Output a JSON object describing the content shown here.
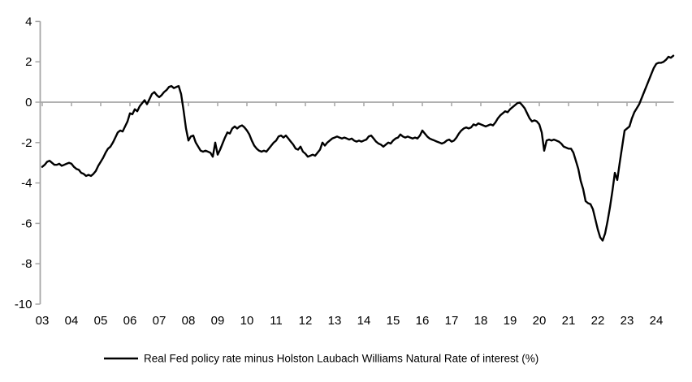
{
  "chart_data": {
    "type": "line",
    "title": "",
    "xlabel": "",
    "ylabel": "",
    "ylim": [
      -10,
      4
    ],
    "xlim_years": [
      2003,
      2024.6
    ],
    "y_ticks": [
      4,
      2,
      0,
      -2,
      -4,
      -6,
      -8,
      -10
    ],
    "x_tick_labels": [
      "03",
      "04",
      "05",
      "06",
      "07",
      "08",
      "09",
      "10",
      "11",
      "12",
      "13",
      "14",
      "15",
      "16",
      "17",
      "18",
      "19",
      "20",
      "21",
      "22",
      "23",
      "24"
    ],
    "grid": "zero-line-only",
    "legend_position": "bottom-center",
    "axis_color": "#a6a6a6",
    "background_color": "#ffffff",
    "series": [
      {
        "name": "Real Fed policy rate minus Holston Laubach Williams Natural Rate of interest (%)",
        "color": "#000000",
        "frequency": "monthly",
        "start": "2003-01",
        "end": "2024-08",
        "values": [
          -3.2,
          -3.1,
          -2.95,
          -2.9,
          -3.0,
          -3.1,
          -3.1,
          -3.05,
          -3.15,
          -3.1,
          -3.05,
          -3.0,
          -3.05,
          -3.2,
          -3.3,
          -3.35,
          -3.5,
          -3.55,
          -3.65,
          -3.6,
          -3.65,
          -3.55,
          -3.4,
          -3.15,
          -2.95,
          -2.75,
          -2.5,
          -2.3,
          -2.2,
          -2.0,
          -1.75,
          -1.5,
          -1.4,
          -1.45,
          -1.2,
          -0.95,
          -0.55,
          -0.6,
          -0.35,
          -0.45,
          -0.2,
          -0.05,
          0.1,
          -0.1,
          0.15,
          0.4,
          0.5,
          0.35,
          0.25,
          0.35,
          0.5,
          0.6,
          0.75,
          0.8,
          0.7,
          0.75,
          0.8,
          0.4,
          -0.4,
          -1.3,
          -1.9,
          -1.7,
          -1.65,
          -2.0,
          -2.2,
          -2.4,
          -2.45,
          -2.4,
          -2.45,
          -2.5,
          -2.7,
          -2.0,
          -2.6,
          -2.35,
          -2.05,
          -1.75,
          -1.5,
          -1.55,
          -1.3,
          -1.2,
          -1.3,
          -1.2,
          -1.15,
          -1.25,
          -1.4,
          -1.6,
          -1.9,
          -2.15,
          -2.3,
          -2.4,
          -2.45,
          -2.4,
          -2.45,
          -2.3,
          -2.15,
          -2.0,
          -1.9,
          -1.7,
          -1.65,
          -1.75,
          -1.65,
          -1.8,
          -1.95,
          -2.1,
          -2.3,
          -2.35,
          -2.2,
          -2.45,
          -2.55,
          -2.7,
          -2.65,
          -2.6,
          -2.65,
          -2.5,
          -2.35,
          -2.0,
          -2.15,
          -2.0,
          -1.9,
          -1.8,
          -1.75,
          -1.7,
          -1.75,
          -1.8,
          -1.75,
          -1.8,
          -1.85,
          -1.8,
          -1.9,
          -1.95,
          -1.9,
          -1.95,
          -1.9,
          -1.85,
          -1.7,
          -1.65,
          -1.8,
          -1.95,
          -2.05,
          -2.1,
          -2.2,
          -2.1,
          -2.0,
          -2.05,
          -1.9,
          -1.8,
          -1.75,
          -1.6,
          -1.7,
          -1.75,
          -1.7,
          -1.75,
          -1.8,
          -1.75,
          -1.8,
          -1.65,
          -1.4,
          -1.55,
          -1.7,
          -1.8,
          -1.85,
          -1.9,
          -1.95,
          -2.0,
          -2.05,
          -2.0,
          -1.9,
          -1.85,
          -1.95,
          -1.9,
          -1.75,
          -1.55,
          -1.4,
          -1.3,
          -1.25,
          -1.3,
          -1.25,
          -1.1,
          -1.15,
          -1.05,
          -1.1,
          -1.15,
          -1.2,
          -1.15,
          -1.1,
          -1.15,
          -1.0,
          -0.8,
          -0.65,
          -0.55,
          -0.45,
          -0.5,
          -0.35,
          -0.25,
          -0.15,
          -0.05,
          -0.02,
          -0.15,
          -0.3,
          -0.55,
          -0.8,
          -0.95,
          -0.9,
          -0.95,
          -1.1,
          -1.5,
          -2.4,
          -1.9,
          -1.85,
          -1.9,
          -1.85,
          -1.9,
          -1.95,
          -2.05,
          -2.2,
          -2.25,
          -2.3,
          -2.3,
          -2.5,
          -2.9,
          -3.3,
          -3.9,
          -4.3,
          -4.9,
          -5.0,
          -5.05,
          -5.3,
          -5.8,
          -6.3,
          -6.7,
          -6.85,
          -6.5,
          -5.9,
          -5.2,
          -4.4,
          -3.5,
          -3.85,
          -3.0,
          -2.2,
          -1.4,
          -1.3,
          -1.2,
          -0.8,
          -0.5,
          -0.3,
          -0.1,
          0.2,
          0.5,
          0.8,
          1.1,
          1.4,
          1.7,
          1.9,
          1.95,
          1.95,
          2.0,
          2.1,
          2.25,
          2.2,
          2.3
        ]
      }
    ]
  },
  "legend": {
    "label": "Real Fed policy rate minus Holston Laubach Williams Natural Rate of interest (%)"
  }
}
